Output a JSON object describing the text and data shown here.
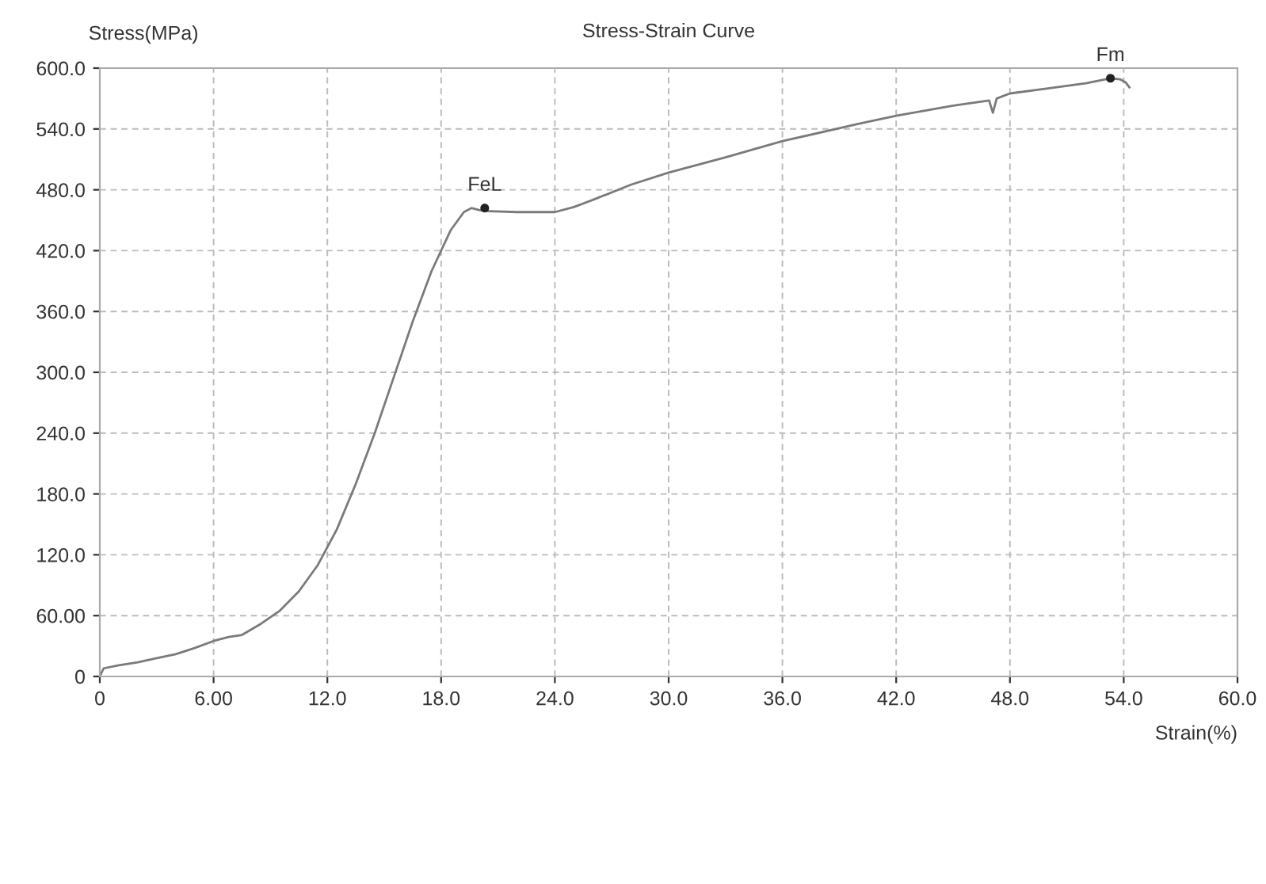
{
  "chart_data": {
    "type": "line",
    "title": "Stress-Strain Curve",
    "xlabel": "Strain(%)",
    "ylabel": "Stress(MPa)",
    "series": [
      {
        "color": "#7a7a7a",
        "x": [
          0,
          0.2,
          1,
          2,
          3,
          4,
          5,
          6,
          6.8,
          7.5,
          8.5,
          9.5,
          10.5,
          11.5,
          12.5,
          13.5,
          14.5,
          15.5,
          16.5,
          17.5,
          18.5,
          19.2,
          19.6,
          20,
          20.3,
          22,
          24,
          25,
          26,
          28,
          30,
          33,
          36,
          40,
          42,
          45,
          46.9,
          47.1,
          47.3,
          48,
          50,
          52,
          53.3,
          53.8,
          54.1,
          54.3
        ],
        "values": [
          0,
          8,
          11,
          14,
          18,
          22,
          28,
          35,
          39,
          41,
          52,
          65,
          84,
          110,
          145,
          190,
          240,
          295,
          350,
          400,
          440,
          458,
          462,
          460,
          459,
          458,
          458,
          463,
          470,
          485,
          497,
          512,
          528,
          545,
          553,
          563,
          568,
          556,
          570,
          575,
          580,
          585,
          590,
          589,
          586,
          581
        ]
      }
    ],
    "xlim": [
      0,
      60
    ],
    "ylim": [
      0,
      600
    ],
    "xticks": [
      0,
      {
        "value": 6,
        "label": "6.00"
      },
      {
        "value": 12,
        "label": "12.0"
      },
      {
        "value": 18,
        "label": "18.0"
      },
      {
        "value": 24,
        "label": "24.0"
      },
      {
        "value": 30,
        "label": "30.0"
      },
      {
        "value": 36,
        "label": "36.0"
      },
      {
        "value": 42,
        "label": "42.0"
      },
      {
        "value": 48,
        "label": "48.0"
      },
      {
        "value": 54,
        "label": "54.0"
      },
      {
        "value": 60,
        "label": "60.0"
      }
    ],
    "yticks": [
      0,
      {
        "value": 60,
        "label": "60.00"
      },
      {
        "value": 120,
        "label": "120.0"
      },
      {
        "value": 180,
        "label": "180.0"
      },
      {
        "value": 240,
        "label": "240.0"
      },
      {
        "value": 300,
        "label": "300.0"
      },
      {
        "value": 360,
        "label": "360.0"
      },
      {
        "value": 420,
        "label": "420.0"
      },
      {
        "value": 480,
        "label": "480.0"
      },
      {
        "value": 540,
        "label": "540.0"
      },
      {
        "value": 600,
        "label": "600.0"
      }
    ],
    "annotations": [
      {
        "text": "FeL",
        "x": 20.3,
        "y": 462
      },
      {
        "text": "Fm",
        "x": 53.3,
        "y": 590
      }
    ],
    "grid": true,
    "marker": "none",
    "line_style": "solid"
  }
}
